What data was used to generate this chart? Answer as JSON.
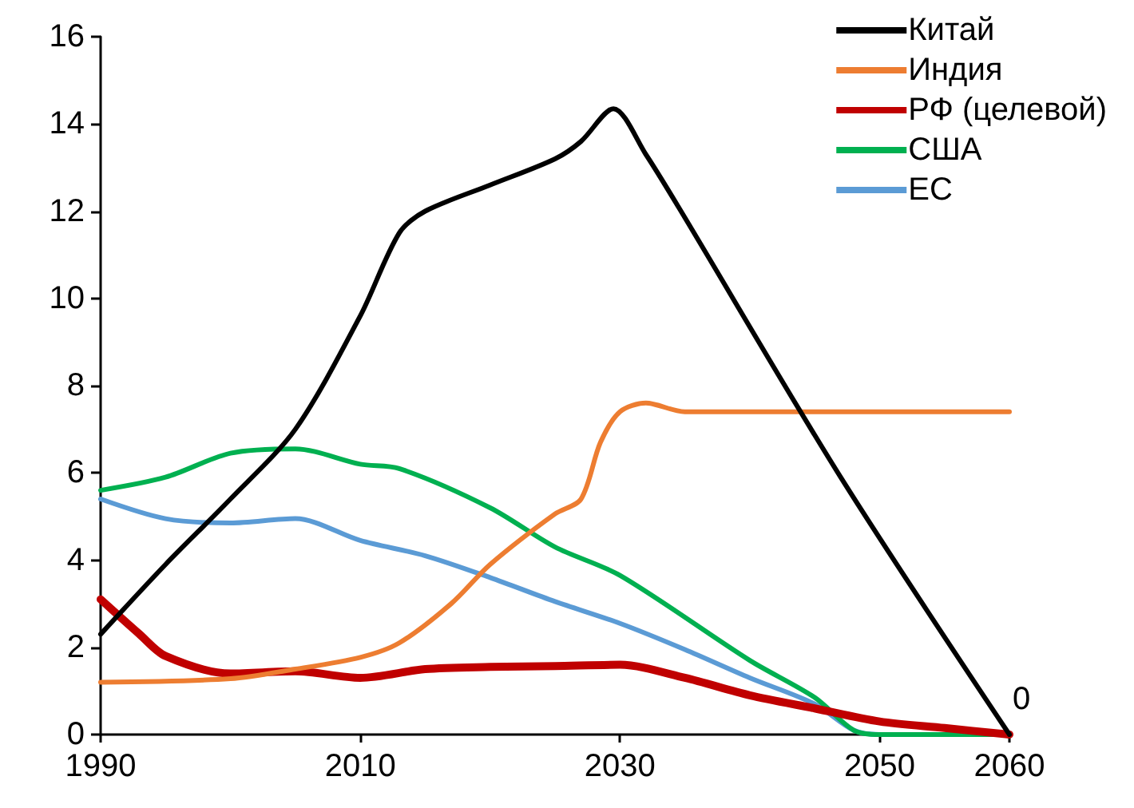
{
  "chart_data": {
    "type": "line",
    "xlim": [
      1990,
      2060
    ],
    "xticks": [
      1990,
      2010,
      2030,
      2050,
      2060
    ],
    "ylim": [
      0,
      16
    ],
    "yticks": [
      0,
      2,
      4,
      6,
      8,
      10,
      12,
      14,
      16
    ],
    "grid": false,
    "legend": "top right",
    "marker": "none",
    "line_style": "solid",
    "annotations": [
      {
        "text": "0",
        "x": 2060,
        "y": 0
      }
    ],
    "series": [
      {
        "name": "Китай",
        "color": "#000000",
        "x": [
          1990,
          1995,
          2000,
          2005,
          2010,
          2013,
          2015,
          2020,
          2025,
          2027,
          2029.5,
          2032,
          2034.5,
          2047,
          2060
        ],
        "values": [
          2.3,
          3.9,
          5.4,
          7.0,
          9.6,
          11.5,
          12.0,
          12.6,
          13.2,
          13.6,
          14.35,
          13.3,
          12.1,
          5.9,
          0
        ]
      },
      {
        "name": "Индия",
        "color": "#ed7d31",
        "x": [
          1990,
          2000,
          2005,
          2010,
          2013,
          2017,
          2020,
          2025,
          2027,
          2028.5,
          2030,
          2032,
          2035,
          2045,
          2060
        ],
        "values": [
          1.2,
          1.28,
          1.5,
          1.77,
          2.1,
          3.0,
          3.9,
          5.06,
          5.4,
          6.7,
          7.4,
          7.6,
          7.4,
          7.4,
          7.4
        ]
      },
      {
        "name": "РФ (целевой)",
        "color": "#c00000",
        "x": [
          1990,
          1993,
          1995,
          2000,
          2005,
          2010,
          2015,
          2020,
          2025,
          2030,
          2035,
          2040,
          2045,
          2050,
          2055,
          2060
        ],
        "values": [
          3.1,
          2.3,
          1.8,
          1.4,
          1.45,
          1.3,
          1.5,
          1.55,
          1.57,
          1.6,
          1.3,
          0.9,
          0.6,
          0.3,
          0.15,
          0
        ]
      },
      {
        "name": "США",
        "color": "#00b050",
        "x": [
          1990,
          1995,
          2000,
          2005,
          2010,
          2013,
          2020,
          2025,
          2030,
          2040,
          2045,
          2048,
          2050,
          2060
        ],
        "values": [
          5.6,
          5.9,
          6.45,
          6.55,
          6.2,
          6.1,
          5.2,
          4.3,
          3.65,
          1.7,
          0.85,
          0.1,
          0,
          0
        ]
      },
      {
        "name": "ЕС",
        "color": "#5b9bd5",
        "x": [
          1990,
          1995,
          2000,
          2005,
          2010,
          2015,
          2020,
          2025,
          2030,
          2035,
          2040,
          2045,
          2048,
          2050,
          2060
        ],
        "values": [
          5.4,
          4.95,
          4.85,
          4.95,
          4.45,
          4.1,
          3.6,
          3.05,
          2.55,
          1.95,
          1.3,
          0.7,
          0.1,
          0,
          0
        ]
      }
    ]
  }
}
